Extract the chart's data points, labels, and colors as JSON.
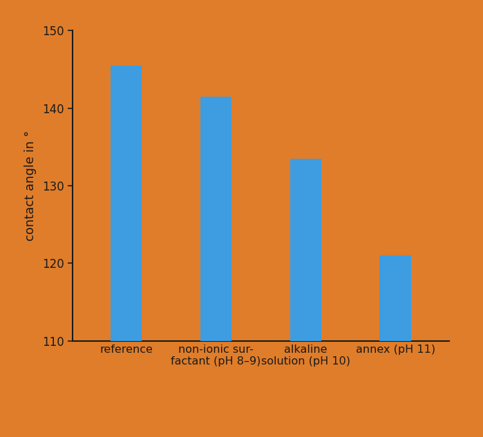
{
  "categories": [
    "reference",
    "non-ionic sur-\nfactant (pH 8–9)",
    "alkaline\nsolution (pH 10)",
    "annex (pH 11)"
  ],
  "values": [
    145.5,
    141.5,
    133.5,
    121.0
  ],
  "bar_color": "#3d9de0",
  "background_color": "#e07d2a",
  "ylabel": "contact angle in °",
  "ylim": [
    110,
    150
  ],
  "yticks": [
    110,
    120,
    130,
    140,
    150
  ],
  "bar_width": 0.35,
  "axis_color": "#1a1a1a",
  "tick_color": "#1a1a1a",
  "label_color": "#1a1a1a",
  "ylabel_fontsize": 13,
  "tick_fontsize": 12,
  "xlabel_fontsize": 11.5
}
